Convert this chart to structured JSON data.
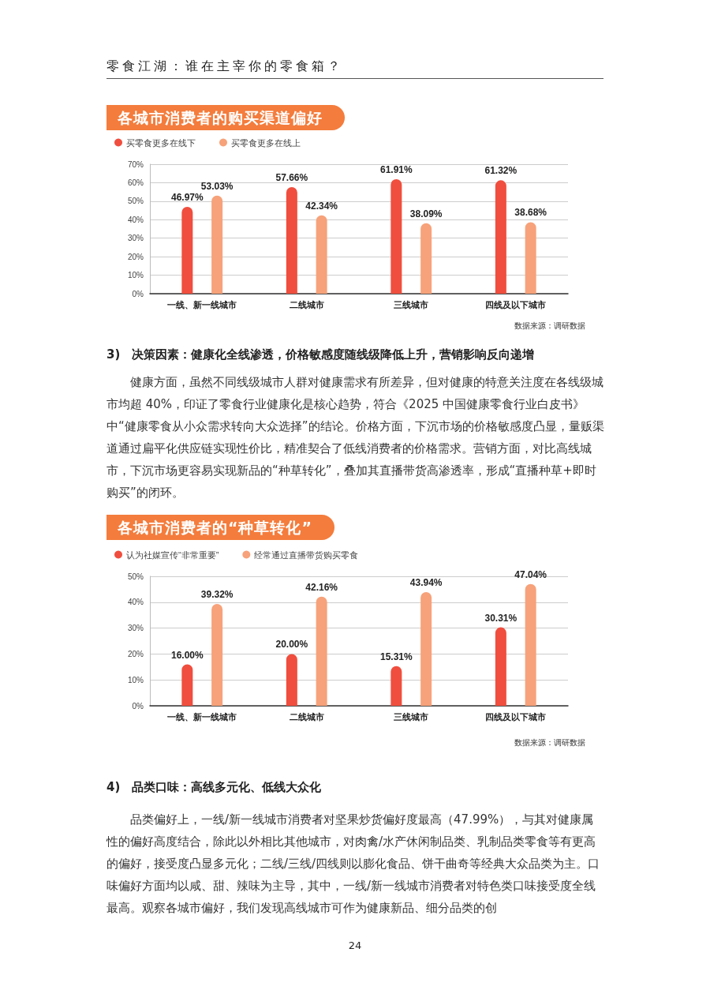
{
  "chart_data": [
    {
      "type": "bar",
      "title": "各城市消费者的购买渠道偏好",
      "categories": [
        "一线、新一线城市",
        "二线城市",
        "三线城市",
        "四线及以下城市"
      ],
      "series": [
        {
          "name": "买零食更多在线下",
          "color": "#f04e3e",
          "values": [
            46.97,
            57.66,
            61.91,
            61.32
          ],
          "value_labels": [
            "46.97%",
            "57.66%",
            "61.91%",
            "61.32%"
          ]
        },
        {
          "name": "买零食更多在线上",
          "color": "#f7a27a",
          "values": [
            53.03,
            42.34,
            38.09,
            38.68
          ],
          "value_labels": [
            "53.03%",
            "42.34%",
            "38.09%",
            "38.68%"
          ]
        }
      ],
      "ylim": [
        0,
        70
      ],
      "yticks": [
        {
          "value": 0,
          "label": "0%"
        },
        {
          "value": 10,
          "label": "10%"
        },
        {
          "value": 20,
          "label": "20%"
        },
        {
          "value": 30,
          "label": "30%"
        },
        {
          "value": 40,
          "label": "40%"
        },
        {
          "value": 50,
          "label": "50%"
        },
        {
          "value": 60,
          "label": "60%"
        },
        {
          "value": 70,
          "label": "70%"
        }
      ],
      "grid": "y",
      "legend": "top left",
      "annotations": [
        "零食江湖：谁在主宰你的零食箱？",
        "数据来源：调研数据"
      ]
    },
    {
      "type": "bar",
      "title": "各城市消费者的“种草转化”",
      "categories": [
        "一线、新一线城市",
        "二线城市",
        "三线城市",
        "四线及以下城市"
      ],
      "series": [
        {
          "name": "认为社媒宣传“非常重要”",
          "color": "#f04e3e",
          "values": [
            16.0,
            20.0,
            15.31,
            30.31
          ],
          "value_labels": [
            "16.00%",
            "20.00%",
            "15.31%",
            "30.31%"
          ]
        },
        {
          "name": "经常通过直播带货购买零食",
          "color": "#f7a27a",
          "values": [
            39.32,
            42.16,
            43.94,
            47.04
          ],
          "value_labels": [
            "39.32%",
            "42.16%",
            "43.94%",
            "47.04%"
          ]
        }
      ],
      "ylim": [
        0,
        50
      ],
      "yticks": [
        {
          "value": 0,
          "label": "0%"
        },
        {
          "value": 10,
          "label": "10%"
        },
        {
          "value": 20,
          "label": "20%"
        },
        {
          "value": 30,
          "label": "30%"
        },
        {
          "value": 40,
          "label": "40%"
        },
        {
          "value": 50,
          "label": "50%"
        }
      ],
      "grid": "y",
      "legend": "top left",
      "annotations": [
        "3)　决策因素：健康化全线渗透，价格敏感度随线级降低上升，营销影响反向递增",
        "健康方面，虽然不同线级城市人群对健康需求有所差异，但对健康的特意关注度在各线级城市均超 40%，印证了零食行业健康化是核心趋势，符合《2025 中国健康零食行业白皮书》中“健康零食从小众需求转向大众选择”的结论。价格方面，下沉市场的价格敏感度凸显，量贩渠道通过扁平化供应链实现性价比，精准契合了低线消费者的价格需求。营销方面，对比高线城市，下沉市场更容易实现新品的“种草转化”，叠加其直播带货高渗透率，形成“直播种草+即时购买”的闭环。",
        "数据来源：调研数据",
        "4)　品类口味：高线多元化、低线大众化",
        "品类偏好上，一线/新一线城市消费者对坚果炒货偏好度最高（47.99%），与其对健康属性的偏好高度结合，除此以外相比其他城市，对肉禽/水产休闲制品类、乳制品类零食等有更高的偏好，接受度凸显多元化；二线/三线/四线则以膨化食品、饼干曲奇等经典大众品类为主。口味偏好方面均以咸、甜、辣味为主导，其中，一线/新一线城市消费者对特色类口味接受度全线最高。观察各城市偏好，我们发现高线城市可作为健康新品、细分品类的创",
        "24"
      ]
    }
  ]
}
